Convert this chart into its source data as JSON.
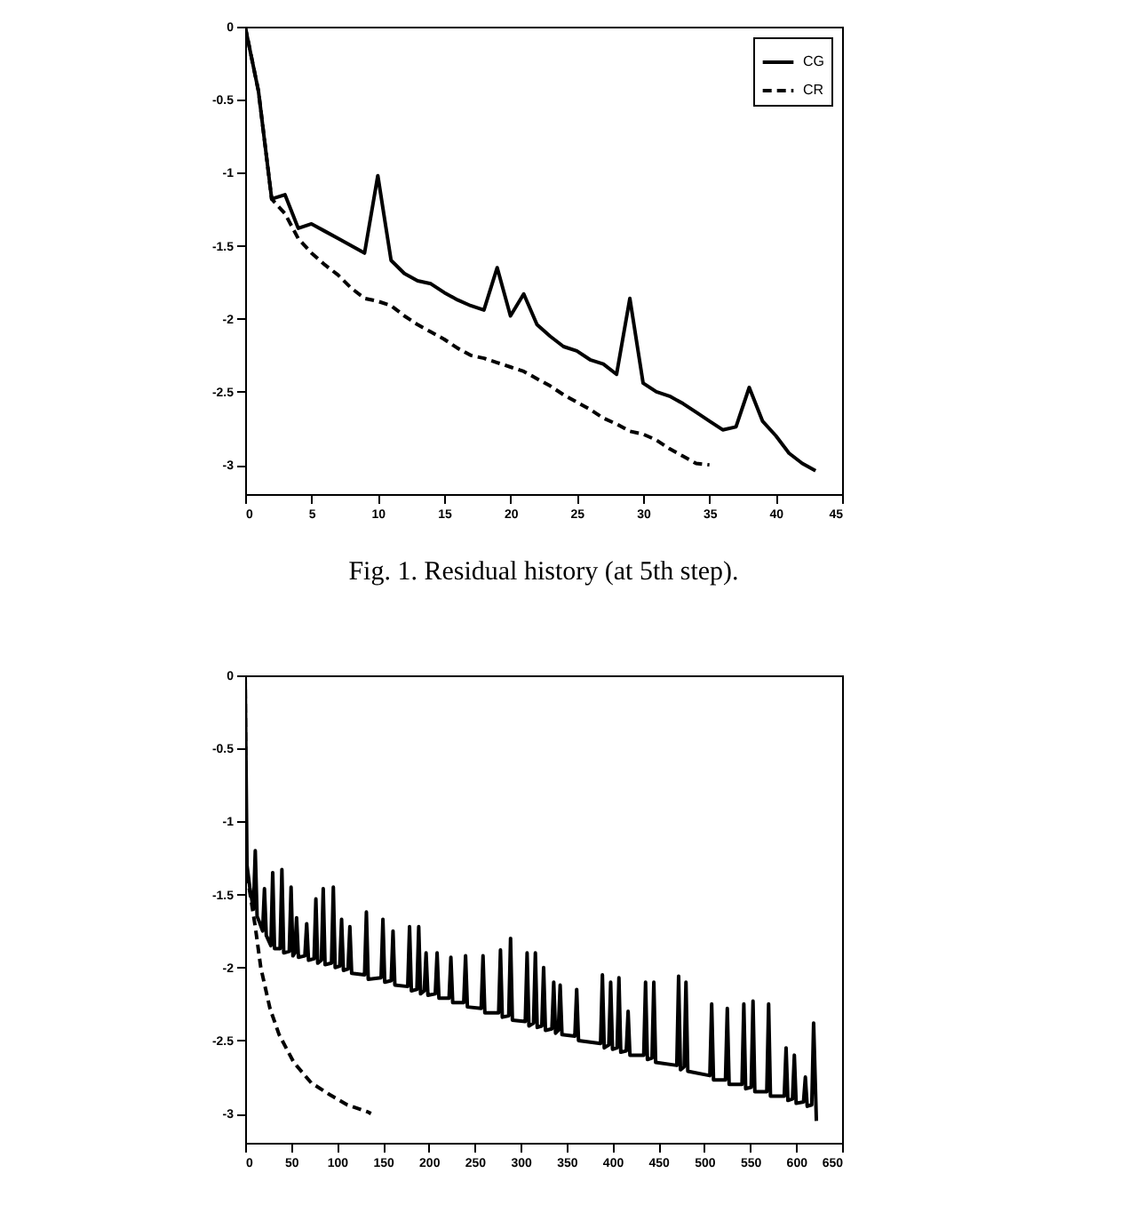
{
  "chart_data": [
    {
      "type": "line",
      "annotations": [
        "Fig. 1. Residual history (at 5th step)."
      ],
      "xlim": [
        0,
        45
      ],
      "xticks": [
        0,
        5,
        10,
        15,
        20,
        25,
        30,
        35,
        40,
        45
      ],
      "ylim": [
        -3.2,
        0
      ],
      "yticks": [
        -3,
        -2.5,
        -2,
        -1.5,
        -1,
        -0.5,
        0
      ],
      "legend": "top right",
      "series": [
        {
          "name": "CG",
          "color": "#000000",
          "line_style": "solid",
          "x": [
            0,
            1,
            2,
            3,
            4,
            5,
            6,
            7,
            8,
            9,
            10,
            11,
            12,
            13,
            14,
            15,
            16,
            17,
            18,
            19,
            20,
            21,
            22,
            23,
            24,
            25,
            26,
            27,
            28,
            29,
            30,
            31,
            32,
            33,
            34,
            35,
            36,
            37,
            38,
            39,
            40,
            41,
            42,
            43
          ],
          "values": [
            0,
            -0.44,
            -1.18,
            -1.15,
            -1.38,
            -1.35,
            -1.4,
            -1.45,
            -1.5,
            -1.55,
            -1.02,
            -1.6,
            -1.69,
            -1.74,
            -1.76,
            -1.82,
            -1.87,
            -1.91,
            -1.94,
            -1.65,
            -1.98,
            -1.83,
            -2.04,
            -2.12,
            -2.19,
            -2.22,
            -2.28,
            -2.31,
            -2.38,
            -1.86,
            -2.44,
            -2.5,
            -2.53,
            -2.58,
            -2.64,
            -2.7,
            -2.76,
            -2.74,
            -2.47,
            -2.7,
            -2.8,
            -2.92,
            -2.99,
            -3.04
          ]
        },
        {
          "name": "CR",
          "color": "#000000",
          "line_style": "dashed",
          "x": [
            0,
            1,
            2,
            3,
            4,
            5,
            6,
            7,
            8,
            9,
            10,
            11,
            12,
            13,
            14,
            15,
            16,
            17,
            18,
            19,
            20,
            21,
            22,
            23,
            24,
            25,
            26,
            27,
            28,
            29,
            30,
            31,
            32,
            33,
            34,
            35
          ],
          "values": [
            0,
            -0.44,
            -1.18,
            -1.28,
            -1.45,
            -1.55,
            -1.63,
            -1.7,
            -1.79,
            -1.86,
            -1.88,
            -1.91,
            -1.98,
            -2.04,
            -2.09,
            -2.14,
            -2.2,
            -2.25,
            -2.27,
            -2.3,
            -2.33,
            -2.36,
            -2.41,
            -2.46,
            -2.52,
            -2.57,
            -2.62,
            -2.68,
            -2.72,
            -2.77,
            -2.79,
            -2.83,
            -2.89,
            -2.94,
            -2.99,
            -3.0
          ]
        }
      ]
    },
    {
      "type": "line",
      "xlim": [
        0,
        650
      ],
      "xticks": [
        0,
        50,
        100,
        150,
        200,
        250,
        300,
        350,
        400,
        450,
        500,
        550,
        600,
        650
      ],
      "ylim": [
        -3.2,
        0
      ],
      "yticks": [
        -3,
        -2.5,
        -2,
        -1.5,
        -1,
        -0.5,
        0
      ],
      "legend": "top right",
      "series": [
        {
          "name": "CG",
          "color": "#000000",
          "line_style": "solid",
          "x": [
            0,
            2,
            5,
            9,
            11,
            13,
            15,
            19,
            21,
            23,
            28,
            30,
            32,
            38,
            40,
            42,
            48,
            50,
            52,
            54,
            56,
            58,
            65,
            67,
            69,
            75,
            77,
            79,
            83,
            85,
            87,
            94,
            96,
            98,
            103,
            105,
            107,
            112,
            114,
            116,
            130,
            132,
            134,
            148,
            150,
            152,
            159,
            161,
            163,
            177,
            179,
            181,
            187,
            189,
            191,
            195,
            197,
            199,
            207,
            209,
            211,
            222,
            224,
            226,
            238,
            240,
            242,
            257,
            259,
            261,
            276,
            278,
            280,
            287,
            289,
            291,
            305,
            307,
            309,
            314,
            316,
            318,
            323,
            325,
            327,
            334,
            336,
            338,
            341,
            343,
            345,
            359,
            361,
            363,
            387,
            389,
            391,
            396,
            398,
            400,
            405,
            407,
            409,
            415,
            417,
            419,
            434,
            436,
            438,
            443,
            445,
            447,
            470,
            472,
            474,
            478,
            480,
            482,
            506,
            508,
            510,
            523,
            525,
            527,
            541,
            543,
            545,
            551,
            553,
            555,
            568,
            570,
            572,
            587,
            589,
            591,
            596,
            598,
            600,
            608,
            610,
            612,
            617,
            619,
            622
          ],
          "values": [
            0,
            -1.3,
            -1.45,
            -1.6,
            -1.2,
            -1.65,
            -1.68,
            -1.75,
            -1.46,
            -1.78,
            -1.85,
            -1.35,
            -1.87,
            -1.87,
            -1.33,
            -1.9,
            -1.89,
            -1.45,
            -1.92,
            -1.9,
            -1.66,
            -1.93,
            -1.92,
            -1.7,
            -1.95,
            -1.94,
            -1.53,
            -1.97,
            -1.95,
            -1.46,
            -1.98,
            -1.97,
            -1.45,
            -2.0,
            -1.99,
            -1.67,
            -2.02,
            -2.01,
            -1.72,
            -2.04,
            -2.05,
            -1.62,
            -2.08,
            -2.07,
            -1.67,
            -2.1,
            -2.09,
            -1.75,
            -2.12,
            -2.13,
            -1.72,
            -2.16,
            -2.15,
            -1.72,
            -2.18,
            -2.16,
            -1.9,
            -2.19,
            -2.18,
            -1.9,
            -2.21,
            -2.21,
            -1.93,
            -2.24,
            -2.24,
            -1.92,
            -2.27,
            -2.28,
            -1.92,
            -2.31,
            -2.31,
            -1.88,
            -2.34,
            -2.33,
            -1.8,
            -2.36,
            -2.37,
            -1.9,
            -2.4,
            -2.38,
            -1.9,
            -2.41,
            -2.4,
            -2.0,
            -2.43,
            -2.42,
            -2.1,
            -2.45,
            -2.43,
            -2.12,
            -2.46,
            -2.47,
            -2.15,
            -2.5,
            -2.52,
            -2.05,
            -2.55,
            -2.53,
            -2.1,
            -2.56,
            -2.55,
            -2.07,
            -2.58,
            -2.57,
            -2.3,
            -2.6,
            -2.6,
            -2.1,
            -2.63,
            -2.62,
            -2.1,
            -2.65,
            -2.67,
            -2.06,
            -2.7,
            -2.68,
            -2.1,
            -2.71,
            -2.74,
            -2.25,
            -2.77,
            -2.77,
            -2.28,
            -2.8,
            -2.8,
            -2.25,
            -2.83,
            -2.82,
            -2.23,
            -2.85,
            -2.85,
            -2.25,
            -2.88,
            -2.88,
            -2.55,
            -2.91,
            -2.9,
            -2.6,
            -2.93,
            -2.92,
            -2.75,
            -2.95,
            -2.94,
            -2.38,
            -3.05
          ]
        },
        {
          "name": "CR",
          "color": "#000000",
          "line_style": "dashed",
          "x": [
            0,
            1,
            3,
            11,
            17,
            27,
            37,
            53,
            72,
            92,
            111,
            134,
            137
          ],
          "values": [
            0,
            -1.32,
            -1.4,
            -1.72,
            -2.0,
            -2.28,
            -2.46,
            -2.65,
            -2.79,
            -2.87,
            -2.94,
            -2.99,
            -3.0
          ]
        }
      ]
    }
  ]
}
